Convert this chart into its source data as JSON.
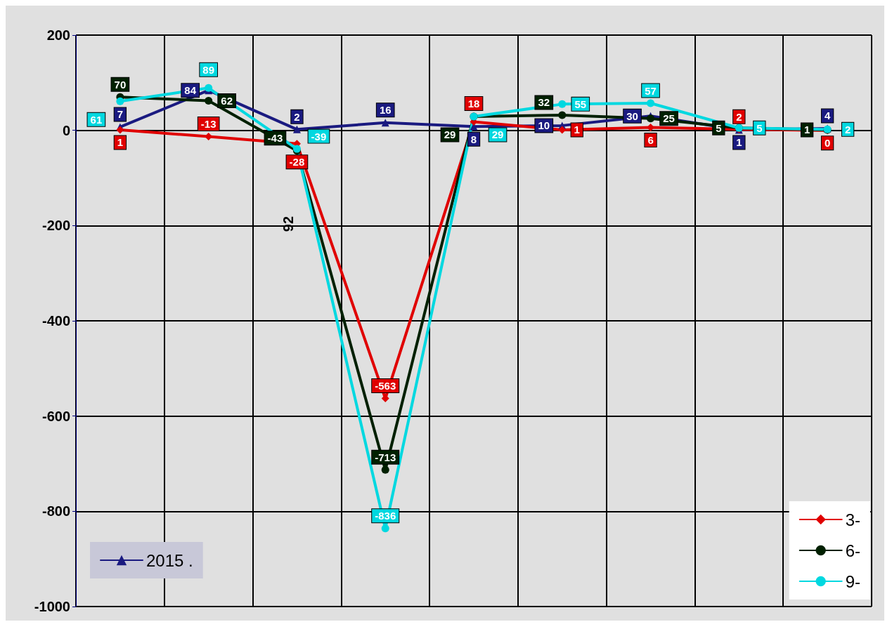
{
  "chart_data": {
    "type": "line",
    "categories": [
      null,
      null,
      null,
      null,
      null,
      null,
      null,
      null,
      null
    ],
    "series": [
      {
        "name": "2015 .",
        "color": "#1a1a80",
        "marker": "triangle",
        "values": [
          7,
          84,
          2,
          16,
          8,
          10,
          30,
          1,
          4
        ]
      },
      {
        "name": "3-",
        "color": "#e00000",
        "marker": "diamond",
        "values": [
          1,
          -13,
          -28,
          -563,
          18,
          1,
          6,
          2,
          0
        ]
      },
      {
        "name": "6-",
        "color": "#002000",
        "marker": "circle",
        "values": [
          70,
          62,
          -43,
          -713,
          29,
          32,
          25,
          5,
          1
        ]
      },
      {
        "name": "9-",
        "color": "#00d8e0",
        "marker": "circle",
        "values": [
          61,
          89,
          -39,
          -836,
          29,
          55,
          57,
          5,
          2
        ]
      }
    ],
    "ylim": [
      -1000,
      200
    ],
    "yticks": [
      -1000,
      -800,
      -600,
      -400,
      -200,
      0,
      200
    ],
    "grid": true,
    "legend": "bottom",
    "data_labels": true,
    "line_style": "solid",
    "annotations": [
      "92"
    ]
  }
}
